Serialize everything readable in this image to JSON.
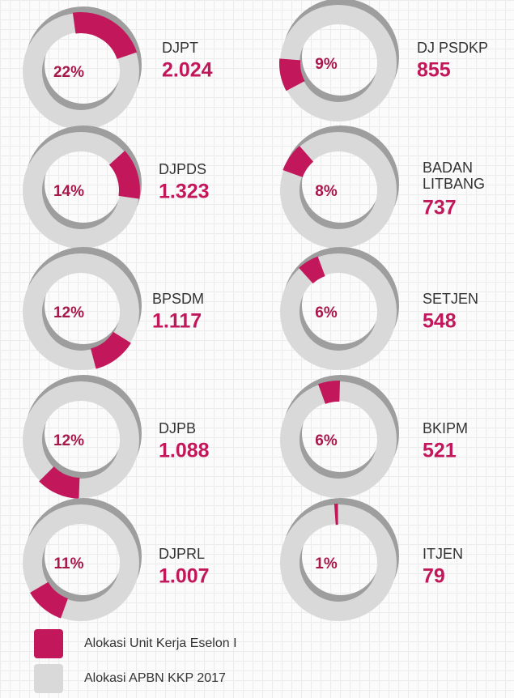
{
  "chart_data": [
    {
      "type": "donut",
      "title": "DJPT",
      "values": [
        22
      ],
      "value_labels": [
        "22%"
      ],
      "amount": 2024,
      "amount_label": "2.024"
    },
    {
      "type": "donut",
      "title": "DJPDS",
      "values": [
        14
      ],
      "value_labels": [
        "14%"
      ],
      "amount": 1323,
      "amount_label": "1.323"
    },
    {
      "type": "donut",
      "title": "BPSDM",
      "values": [
        12
      ],
      "value_labels": [
        "12%"
      ],
      "amount": 1117,
      "amount_label": "1.117"
    },
    {
      "type": "donut",
      "title": "DJPB",
      "values": [
        12
      ],
      "value_labels": [
        "12%"
      ],
      "amount": 1088,
      "amount_label": "1.088"
    },
    {
      "type": "donut",
      "title": "DJPRL",
      "values": [
        11
      ],
      "value_labels": [
        "11%"
      ],
      "amount": 1007,
      "amount_label": "1.007"
    },
    {
      "type": "donut",
      "title": "DJ PSDKP",
      "values": [
        9
      ],
      "value_labels": [
        "9%"
      ],
      "amount": 855,
      "amount_label": "855"
    },
    {
      "type": "donut",
      "title": "BADAN LITBANG",
      "values": [
        8
      ],
      "value_labels": [
        "8%"
      ],
      "amount": 737,
      "amount_label": "737"
    },
    {
      "type": "donut",
      "title": "SETJEN",
      "values": [
        6
      ],
      "value_labels": [
        "6%"
      ],
      "amount": 548,
      "amount_label": "548"
    },
    {
      "type": "donut",
      "title": "BKIPM",
      "values": [
        6
      ],
      "value_labels": [
        "6%"
      ],
      "amount": 521,
      "amount_label": "521"
    },
    {
      "type": "donut",
      "title": "ITJEN",
      "values": [
        1
      ],
      "value_labels": [
        "1%"
      ],
      "amount": 79,
      "amount_label": "79"
    }
  ],
  "legend": [
    {
      "name": "Alokasi Unit Kerja Eselon I",
      "color": "#c2185b"
    },
    {
      "name": "Alokasi APBN KKP 2017",
      "color": "#d9d9d9"
    }
  ]
}
